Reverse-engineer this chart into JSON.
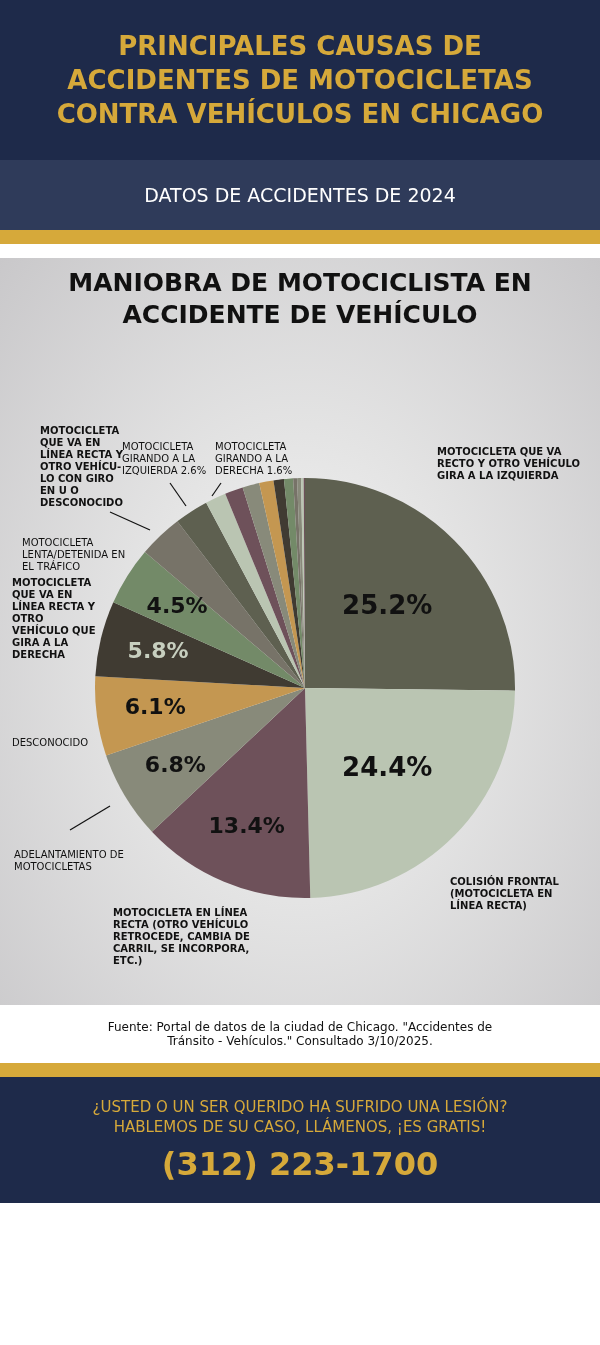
{
  "chart_data": {
    "type": "pie",
    "title": "MANIOBRA DE MOTOCICLISTA EN ACCIDENTE DE VEHÍCULO",
    "subtitle": "DATOS DE ACCIDENTES DE 2024",
    "categories": [
      "MOTOCICLETA QUE VA RECTO Y OTRO VEHÍCULO GIRA A LA IZQUIERDA",
      "COLISIÓN FRONTAL (MOTOCICLETA EN LÍNEA RECTA)",
      "MOTOCICLETA EN LÍNEA RECTA (OTRO VEHÍCULO RETROCEDE, CAMBIA DE CARRIL, SE INCORPORA, ETC.)",
      "ADELANTAMIENTO DE MOTOCICLETAS",
      "DESCONOCIDO",
      "MOTOCICLETA QUE VA EN LÍNEA RECTA Y OTRO VEHÍCULO QUE GIRA A LA DERECHA",
      "MOTOCICLETA LENTA/DETENIDA EN EL TRÁFICO",
      "MOTOCICLETA QUE VA EN LÍNEA RECTA Y OTRO VEHÍCU- LO CON GIRO EN U O DESCONOCIDO",
      "MOTOCICLETA GIRANDO A LA IZQUIERDA",
      "MOTOCICLETA GIRANDO A LA DERECHA",
      null,
      null,
      null,
      null,
      null,
      null,
      null,
      null,
      null
    ],
    "values": [
      25.2,
      24.4,
      13.4,
      6.8,
      6.1,
      5.8,
      4.5,
      3.4,
      2.6,
      1.6,
      1.4,
      1.3,
      1.1,
      0.8,
      0.7,
      0.3,
      0.3,
      0.2,
      0.1
    ],
    "value_labels": [
      "25.2%",
      "24.4%",
      "13.4%",
      "6.8%",
      "6.1%",
      "5.8%",
      "4.5%",
      null,
      "2.6%",
      "1.6%",
      null,
      null,
      null,
      null,
      null,
      null,
      null,
      null,
      null
    ],
    "colors": [
      "#5e6050",
      "#bac5b2",
      "#6e515a",
      "#888a7a",
      "#c49751",
      "#403b32",
      "#738a68",
      "#777368",
      "#5e6050",
      "#bac5b2",
      "#6e515a",
      "#888a7a",
      "#c49751",
      "#403b32",
      "#738a68",
      "#777368",
      "#888a7a",
      "#bac5b2",
      "#6e515a"
    ],
    "legend": false,
    "annotations": [
      "PRINCIPALES CAUSAS DE ACCIDENTES DE MOTOCICLETAS CONTRA VEHÍCULOS EN CHICAGO",
      "Fuente: Portal de datos de la ciudad de Chicago. \"Accidentes de Tránsito - Vehículos.\" Consultado 3/10/2025.",
      "¿USTED O UN SER QUERIDO HA SUFRIDO UNA LESIÓN? HABLEMOS DE SU CASO, LLÁMENOS, ¡ES GRATIS!",
      "(312) 223-1700"
    ]
  }
}
